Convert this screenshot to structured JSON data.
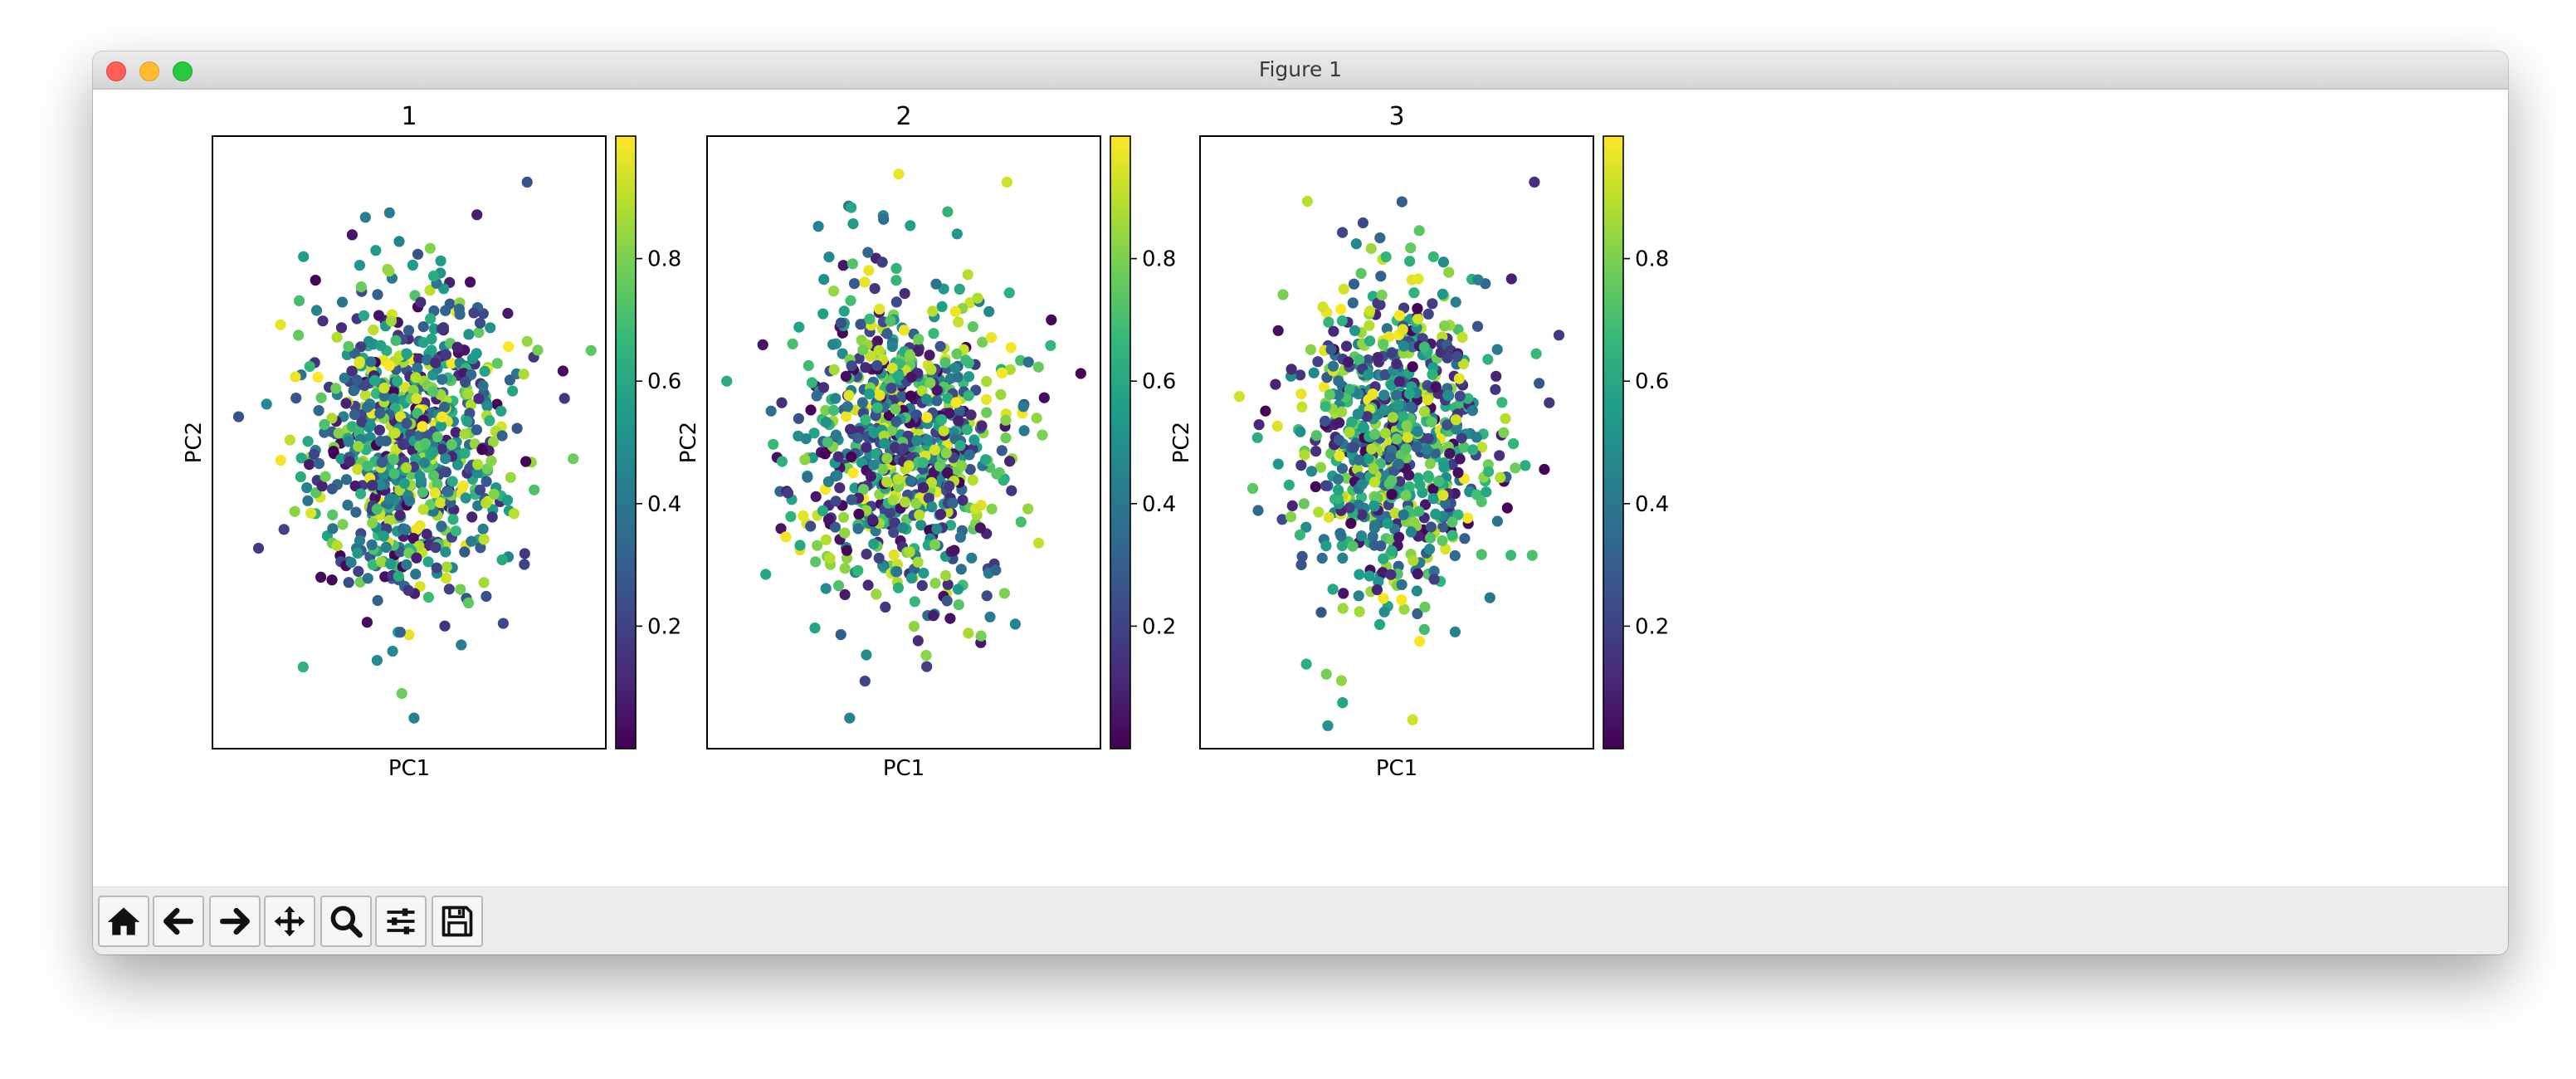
{
  "window": {
    "title": "Figure 1"
  },
  "toolbar": {
    "buttons": [
      {
        "name": "home-button",
        "icon": "home-icon"
      },
      {
        "name": "back-button",
        "icon": "arrow-left-icon"
      },
      {
        "name": "forward-button",
        "icon": "arrow-right-icon"
      },
      {
        "name": "pan-button",
        "icon": "move-icon"
      },
      {
        "name": "zoom-button",
        "icon": "magnifier-icon"
      },
      {
        "name": "configure-subplots-button",
        "icon": "sliders-icon"
      },
      {
        "name": "save-button",
        "icon": "floppy-disk-icon"
      }
    ]
  },
  "chart_data": [
    {
      "type": "scatter",
      "title": "1",
      "xlabel": "PC1",
      "ylabel": "PC2",
      "xlim": [
        -4,
        4
      ],
      "ylim": [
        -4,
        4
      ],
      "n_points": 800,
      "seed": 11,
      "colorbar": {
        "colormap": "viridis",
        "range": [
          0,
          1
        ],
        "ticks": [
          "0.2",
          "0.4",
          "0.6",
          "0.8"
        ]
      },
      "outliers": [
        [
          2.4,
          3.4
        ],
        [
          3.7,
          1.2
        ],
        [
          0.1,
          -3.6
        ],
        [
          -2.9,
          0.5
        ],
        [
          -0.4,
          3.0
        ]
      ]
    },
    {
      "type": "scatter",
      "title": "2",
      "xlabel": "PC1",
      "ylabel": "PC2",
      "xlim": [
        -4,
        4
      ],
      "ylim": [
        -4,
        4
      ],
      "n_points": 800,
      "seed": 23,
      "colorbar": {
        "colormap": "viridis",
        "range": [
          0,
          1
        ],
        "ticks": [
          "0.2",
          "0.4",
          "0.6",
          "0.8"
        ]
      },
      "outliers": [
        [
          2.1,
          3.4
        ],
        [
          3.0,
          1.6
        ],
        [
          3.6,
          0.9
        ],
        [
          -1.1,
          -3.6
        ],
        [
          -3.6,
          0.8
        ]
      ]
    },
    {
      "type": "scatter",
      "title": "3",
      "xlabel": "PC1",
      "ylabel": "PC2",
      "xlim": [
        -4,
        4
      ],
      "ylim": [
        -4,
        4
      ],
      "n_points": 800,
      "seed": 37,
      "colorbar": {
        "colormap": "viridis",
        "range": [
          0,
          1
        ],
        "ticks": [
          "0.2",
          "0.4",
          "0.6",
          "0.8"
        ]
      },
      "outliers": [
        [
          2.8,
          3.4
        ],
        [
          3.3,
          1.4
        ],
        [
          -3.2,
          0.6
        ],
        [
          -1.1,
          -3.4
        ],
        [
          -1.4,
          -3.7
        ]
      ]
    }
  ]
}
